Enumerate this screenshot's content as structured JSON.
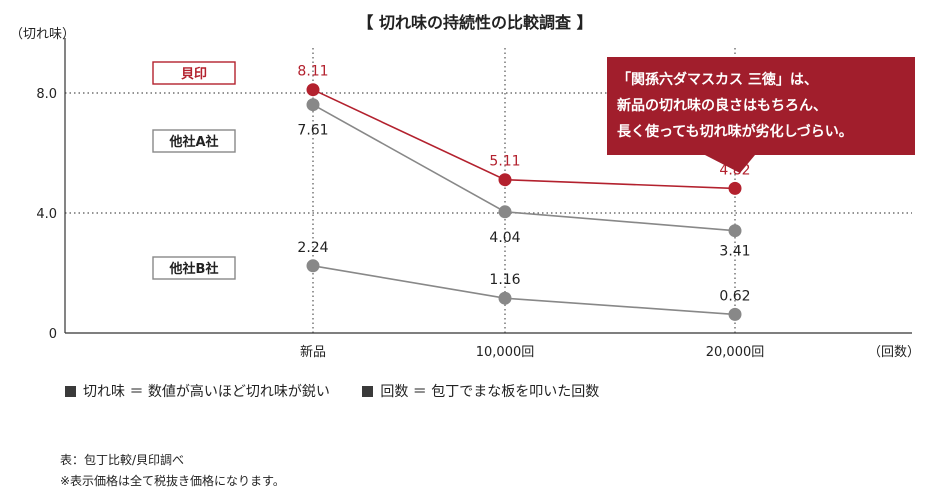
{
  "chart_data": {
    "type": "line",
    "title": "【 切れ味の持続性の比較調査 】",
    "ylabel": "（切れ味）",
    "xlabel": "（回数）",
    "categories": [
      "新品",
      "10,000回",
      "20,000回"
    ],
    "ylim": [
      0,
      9.5
    ],
    "yticks": [
      0,
      4.0,
      8.0
    ],
    "ytick_labels": [
      "0",
      "4.0",
      "8.0"
    ],
    "grid": true,
    "series": [
      {
        "name": "貝印",
        "values": [
          8.11,
          5.11,
          4.82
        ],
        "labels": [
          "8.11",
          "5.11",
          "4.82"
        ],
        "color": "#b3212e"
      },
      {
        "name": "他社A社",
        "values": [
          7.61,
          4.04,
          3.41
        ],
        "labels": [
          "7.61",
          "4.04",
          "3.41"
        ],
        "color": "#888888"
      },
      {
        "name": "他社B社",
        "values": [
          2.24,
          1.16,
          0.62
        ],
        "labels": [
          "2.24",
          "1.16",
          "0.62"
        ],
        "color": "#888888"
      }
    ],
    "callout": {
      "lines": [
        "「関孫六ダマスカス 三徳」は、",
        "新品の切れ味の良さはもちろん、",
        "長く使っても切れ味が劣化しづらい。"
      ],
      "color": "#a11e2c"
    }
  },
  "legend": {
    "items": [
      "切れ味 ＝ 数値が高いほど切れ味が鋭い",
      "回数 ＝ 包丁でまな板を叩いた回数"
    ]
  },
  "notes": {
    "source": "表：包丁比較/貝印調べ",
    "tax": "※表示価格は全て税抜き価格になります。"
  }
}
